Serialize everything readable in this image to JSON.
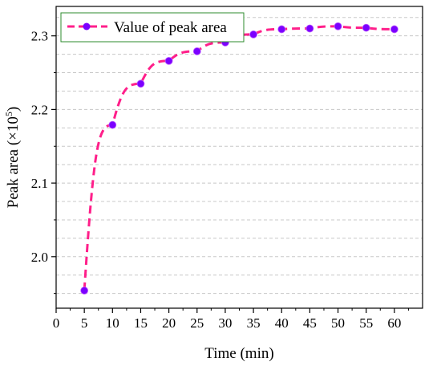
{
  "chart_data": {
    "type": "line",
    "xlabel": "Time (min)",
    "ylabel_main": "Peak area (×10",
    "ylabel_sup": "5",
    "ylabel_end": ")",
    "xlim": [
      0,
      65
    ],
    "ylim": [
      1.93,
      2.34
    ],
    "x_ticks": [
      0,
      5,
      10,
      15,
      20,
      25,
      30,
      35,
      40,
      45,
      50,
      55,
      60
    ],
    "y_ticks": [
      2.0,
      2.1,
      2.2,
      2.3
    ],
    "y_tick_labels": [
      "2.0",
      "2.1",
      "2.2",
      "2.3"
    ],
    "grid": "horizontal dashed",
    "legend_position": "top-left",
    "series": [
      {
        "name": "Value of peak area",
        "color": "#ff1f8a",
        "marker_color": "#7b00ff",
        "line_style": "dashed",
        "x": [
          5,
          10,
          15,
          20,
          25,
          30,
          35,
          40,
          45,
          50,
          55,
          60
        ],
        "y": [
          1.954,
          2.179,
          2.235,
          2.266,
          2.279,
          2.291,
          2.302,
          2.309,
          2.31,
          2.313,
          2.311,
          2.309
        ]
      }
    ]
  }
}
